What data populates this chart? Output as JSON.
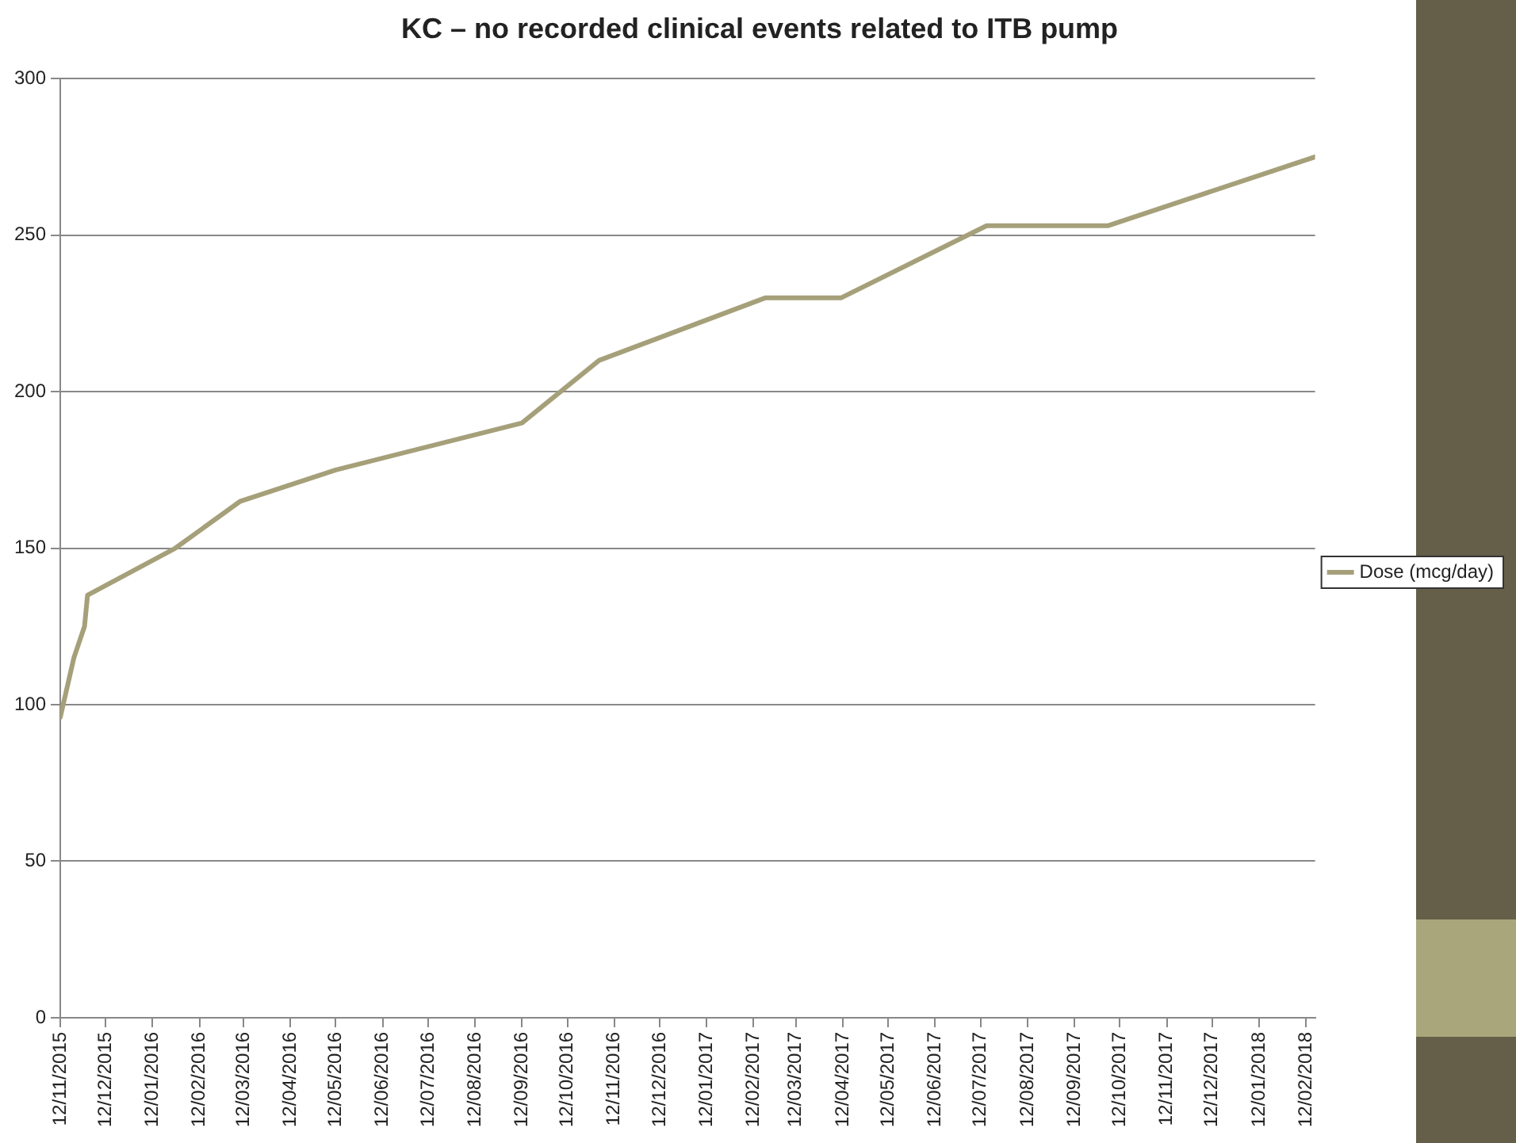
{
  "chart_data": {
    "type": "line",
    "title": "KC – no recorded clinical events related to ITB pump",
    "x": [
      "2015-11-12",
      "2015-11-21",
      "2015-11-28",
      "2015-11-30",
      "2016-01-27",
      "2016-03-10",
      "2016-05-12",
      "2016-09-12",
      "2016-11-02",
      "2017-02-20",
      "2017-04-11",
      "2017-07-16",
      "2017-10-04",
      "2018-02-18"
    ],
    "series": [
      {
        "name": "Dose (mcg/day)",
        "color": "#a6a07a",
        "values": [
          96,
          115,
          125,
          135,
          150,
          165,
          175,
          190,
          210,
          230,
          230,
          253,
          253,
          275
        ]
      }
    ],
    "xlim": [
      "2015-11-12",
      "2018-02-18"
    ],
    "xticks": [
      {
        "value": "2015-11-12",
        "label": "12/11/2015"
      },
      {
        "value": "2015-12-12",
        "label": "12/12/2015"
      },
      {
        "value": "2016-01-12",
        "label": "12/01/2016"
      },
      {
        "value": "2016-02-12",
        "label": "12/02/2016"
      },
      {
        "value": "2016-03-12",
        "label": "12/03/2016"
      },
      {
        "value": "2016-04-12",
        "label": "12/04/2016"
      },
      {
        "value": "2016-05-12",
        "label": "12/05/2016"
      },
      {
        "value": "2016-06-12",
        "label": "12/06/2016"
      },
      {
        "value": "2016-07-12",
        "label": "12/07/2016"
      },
      {
        "value": "2016-08-12",
        "label": "12/08/2016"
      },
      {
        "value": "2016-09-12",
        "label": "12/09/2016"
      },
      {
        "value": "2016-10-12",
        "label": "12/10/2016"
      },
      {
        "value": "2016-11-12",
        "label": "12/11/2016"
      },
      {
        "value": "2016-12-12",
        "label": "12/12/2016"
      },
      {
        "value": "2017-01-12",
        "label": "12/01/2017"
      },
      {
        "value": "2017-02-12",
        "label": "12/02/2017"
      },
      {
        "value": "2017-03-12",
        "label": "12/03/2017"
      },
      {
        "value": "2017-04-12",
        "label": "12/04/2017"
      },
      {
        "value": "2017-05-12",
        "label": "12/05/2017"
      },
      {
        "value": "2017-06-12",
        "label": "12/06/2017"
      },
      {
        "value": "2017-07-12",
        "label": "12/07/2017"
      },
      {
        "value": "2017-08-12",
        "label": "12/08/2017"
      },
      {
        "value": "2017-09-12",
        "label": "12/09/2017"
      },
      {
        "value": "2017-10-12",
        "label": "12/10/2017"
      },
      {
        "value": "2017-11-12",
        "label": "12/11/2017"
      },
      {
        "value": "2017-12-12",
        "label": "12/12/2017"
      },
      {
        "value": "2018-01-12",
        "label": "12/01/2018"
      },
      {
        "value": "2018-02-12",
        "label": "12/02/2018"
      }
    ],
    "ylim": [
      0,
      300
    ],
    "yticks": [
      0,
      50,
      100,
      150,
      200,
      250,
      300
    ],
    "grid": "y",
    "legend": "right",
    "marker": "none",
    "line_style": "solid"
  }
}
